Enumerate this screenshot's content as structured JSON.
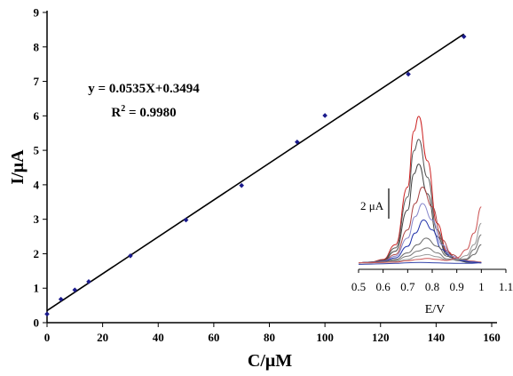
{
  "chart_data": [
    {
      "type": "scatter",
      "xlabel": "C/μM",
      "ylabel": "I/μA",
      "xlim": [
        0,
        160
      ],
      "ylim": [
        0,
        9
      ],
      "x_ticks": [
        "0",
        "20",
        "40",
        "60",
        "80",
        "100",
        "120",
        "140",
        "160"
      ],
      "y_ticks": [
        "0",
        "1",
        "2",
        "3",
        "4",
        "5",
        "6",
        "7",
        "8",
        "9"
      ],
      "grid": false,
      "marker_color": "#1a1a8c",
      "series": [
        {
          "x": [
            0,
            5,
            10,
            15,
            30,
            50,
            70,
            90,
            100,
            130,
            150
          ],
          "y": [
            0.25,
            0.68,
            0.95,
            1.19,
            1.94,
            2.98,
            3.98,
            5.24,
            6.01,
            7.21,
            8.3
          ]
        }
      ],
      "fit": {
        "slope": 0.0535,
        "intercept": 0.3494,
        "x_range": [
          0,
          150
        ],
        "color": "#000000",
        "equation_text": "y = 0.0535X+0.3494",
        "r2_prefix": "R",
        "r2_exponent": "2",
        "r2_suffix": " = 0.9980"
      }
    },
    {
      "type": "line",
      "inset": true,
      "xlabel": "E/V",
      "xlim": [
        0.5,
        1.1
      ],
      "x_ticks": [
        "0.5",
        "0.6",
        "0.7",
        "0.8",
        "0.9",
        "1",
        "1.1"
      ],
      "scale_bar_label": "2 μA",
      "series": [
        {
          "color": "#cc2222",
          "x": [
            0.5,
            0.55,
            0.6,
            0.65,
            0.7,
            0.725,
            0.745,
            0.78,
            0.82,
            0.86,
            0.9,
            0.95,
            1.0
          ],
          "y": [
            0.2,
            0.22,
            0.3,
            0.75,
            2.5,
            4.2,
            4.65,
            3.3,
            1.4,
            0.55,
            0.3,
            0.22,
            0.2
          ]
        },
        {
          "color": "#555555",
          "x": [
            0.5,
            0.55,
            0.6,
            0.65,
            0.7,
            0.725,
            0.745,
            0.78,
            0.82,
            0.86,
            0.9,
            0.95,
            1.0
          ],
          "y": [
            0.2,
            0.22,
            0.28,
            0.65,
            2.2,
            3.6,
            3.95,
            2.8,
            1.2,
            0.5,
            0.28,
            0.22,
            0.2
          ]
        },
        {
          "color": "#444444",
          "x": [
            0.5,
            0.55,
            0.6,
            0.65,
            0.7,
            0.725,
            0.745,
            0.78,
            0.82,
            0.86,
            0.9,
            0.95,
            1.0
          ],
          "y": [
            0.2,
            0.22,
            0.27,
            0.55,
            1.8,
            2.9,
            3.2,
            2.3,
            1.0,
            0.45,
            0.27,
            0.21,
            0.2
          ]
        },
        {
          "color": "#aa4444",
          "x": [
            0.5,
            0.55,
            0.6,
            0.65,
            0.7,
            0.73,
            0.76,
            0.8,
            0.84,
            0.88,
            0.92,
            0.96,
            1.0
          ],
          "y": [
            0.2,
            0.22,
            0.26,
            0.45,
            1.2,
            2.0,
            2.5,
            1.9,
            0.9,
            0.45,
            0.3,
            0.25,
            0.22
          ]
        },
        {
          "color": "#8888cc",
          "x": [
            0.5,
            0.55,
            0.6,
            0.65,
            0.7,
            0.73,
            0.76,
            0.8,
            0.84,
            0.88,
            0.92,
            0.96,
            1.0
          ],
          "y": [
            0.2,
            0.21,
            0.25,
            0.4,
            0.95,
            1.6,
            2.0,
            1.5,
            0.75,
            0.4,
            0.28,
            0.23,
            0.2
          ]
        },
        {
          "color": "#2233aa",
          "x": [
            0.5,
            0.55,
            0.6,
            0.65,
            0.7,
            0.73,
            0.765,
            0.8,
            0.84,
            0.88,
            0.92,
            0.96,
            1.0
          ],
          "y": [
            0.2,
            0.21,
            0.24,
            0.35,
            0.7,
            1.1,
            1.5,
            1.2,
            0.6,
            0.35,
            0.26,
            0.22,
            0.2
          ]
        },
        {
          "color": "#666666",
          "x": [
            0.5,
            0.55,
            0.6,
            0.65,
            0.7,
            0.74,
            0.775,
            0.82,
            0.86,
            0.9,
            0.94,
            0.97,
            1.0
          ],
          "y": [
            0.2,
            0.21,
            0.23,
            0.3,
            0.5,
            0.75,
            0.95,
            0.7,
            0.4,
            0.3,
            0.3,
            0.45,
            0.75
          ]
        },
        {
          "color": "#777777",
          "x": [
            0.5,
            0.55,
            0.6,
            0.65,
            0.7,
            0.74,
            0.78,
            0.82,
            0.86,
            0.9,
            0.94,
            0.97,
            1.0
          ],
          "y": [
            0.2,
            0.2,
            0.22,
            0.27,
            0.4,
            0.55,
            0.65,
            0.5,
            0.32,
            0.28,
            0.32,
            0.6,
            1.05
          ]
        },
        {
          "color": "#999999",
          "x": [
            0.5,
            0.55,
            0.6,
            0.65,
            0.7,
            0.74,
            0.78,
            0.82,
            0.86,
            0.9,
            0.94,
            0.97,
            1.0
          ],
          "y": [
            0.2,
            0.2,
            0.21,
            0.24,
            0.3,
            0.4,
            0.45,
            0.38,
            0.28,
            0.3,
            0.42,
            0.75,
            1.4
          ]
        },
        {
          "color": "#cc5555",
          "x": [
            0.5,
            0.55,
            0.6,
            0.65,
            0.7,
            0.74,
            0.78,
            0.82,
            0.86,
            0.9,
            0.94,
            0.97,
            1.0
          ],
          "y": [
            0.2,
            0.2,
            0.21,
            0.22,
            0.26,
            0.3,
            0.33,
            0.3,
            0.27,
            0.35,
            0.6,
            1.1,
            1.9
          ]
        },
        {
          "color": "#3344aa",
          "x": [
            0.5,
            0.55,
            0.6,
            0.65,
            0.7,
            0.75,
            0.8,
            0.85,
            0.9,
            0.95,
            1.0
          ],
          "y": [
            0.15,
            0.16,
            0.17,
            0.18,
            0.2,
            0.21,
            0.2,
            0.19,
            0.18,
            0.18,
            0.2
          ]
        }
      ]
    }
  ]
}
